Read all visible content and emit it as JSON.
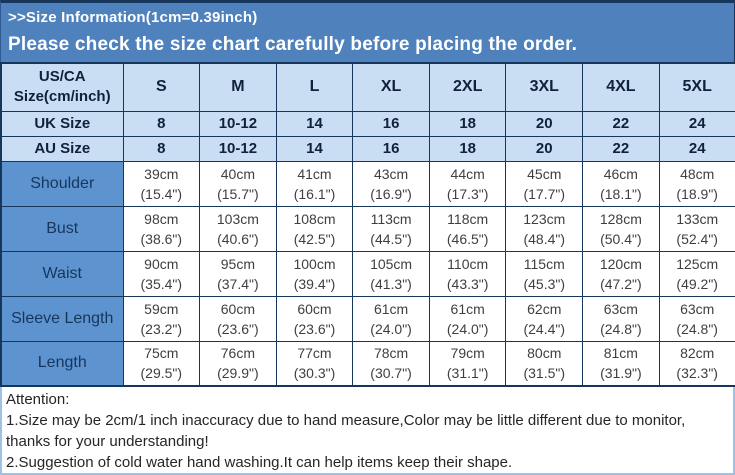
{
  "banner": {
    "title": ">>Size Information(1cm=0.39inch)",
    "subtitle": "Please check the size chart carefully before placing the order."
  },
  "table": {
    "corner": {
      "line1": "US/CA",
      "line2": "Size(cm/inch)"
    },
    "size_columns": [
      "S",
      "M",
      "L",
      "XL",
      "2XL",
      "3XL",
      "4XL",
      "5XL"
    ],
    "size_rows": [
      {
        "label": "UK Size",
        "values": [
          "8",
          "10-12",
          "14",
          "16",
          "18",
          "20",
          "22",
          "24"
        ]
      },
      {
        "label": "AU Size",
        "values": [
          "8",
          "10-12",
          "14",
          "16",
          "18",
          "20",
          "22",
          "24"
        ]
      }
    ],
    "measurement_rows": [
      {
        "label": "Shoulder",
        "cells": [
          {
            "cm": "39cm",
            "inch": "(15.4\")"
          },
          {
            "cm": "40cm",
            "inch": "(15.7\")"
          },
          {
            "cm": "41cm",
            "inch": "(16.1\")"
          },
          {
            "cm": "43cm",
            "inch": "(16.9\")"
          },
          {
            "cm": "44cm",
            "inch": "(17.3\")"
          },
          {
            "cm": "45cm",
            "inch": "(17.7\")"
          },
          {
            "cm": "46cm",
            "inch": "(18.1\")"
          },
          {
            "cm": "48cm",
            "inch": "(18.9\")"
          }
        ]
      },
      {
        "label": "Bust",
        "cells": [
          {
            "cm": "98cm",
            "inch": "(38.6\")"
          },
          {
            "cm": "103cm",
            "inch": "(40.6\")"
          },
          {
            "cm": "108cm",
            "inch": "(42.5\")"
          },
          {
            "cm": "113cm",
            "inch": "(44.5\")"
          },
          {
            "cm": "118cm",
            "inch": "(46.5\")"
          },
          {
            "cm": "123cm",
            "inch": "(48.4\")"
          },
          {
            "cm": "128cm",
            "inch": "(50.4\")"
          },
          {
            "cm": "133cm",
            "inch": "(52.4\")"
          }
        ]
      },
      {
        "label": "Waist",
        "cells": [
          {
            "cm": "90cm",
            "inch": "(35.4\")"
          },
          {
            "cm": "95cm",
            "inch": "(37.4\")"
          },
          {
            "cm": "100cm",
            "inch": "(39.4\")"
          },
          {
            "cm": "105cm",
            "inch": "(41.3\")"
          },
          {
            "cm": "110cm",
            "inch": "(43.3\")"
          },
          {
            "cm": "115cm",
            "inch": "(45.3\")"
          },
          {
            "cm": "120cm",
            "inch": "(47.2\")"
          },
          {
            "cm": "125cm",
            "inch": "(49.2\")"
          }
        ]
      },
      {
        "label": "Sleeve Length",
        "cells": [
          {
            "cm": "59cm",
            "inch": "(23.2\")"
          },
          {
            "cm": "60cm",
            "inch": "(23.6\")"
          },
          {
            "cm": "60cm",
            "inch": "(23.6\")"
          },
          {
            "cm": "61cm",
            "inch": "(24.0\")"
          },
          {
            "cm": "61cm",
            "inch": "(24.0\")"
          },
          {
            "cm": "62cm",
            "inch": "(24.4\")"
          },
          {
            "cm": "63cm",
            "inch": "(24.8\")"
          },
          {
            "cm": "63cm",
            "inch": "(24.8\")"
          }
        ]
      },
      {
        "label": "Length",
        "cells": [
          {
            "cm": "75cm",
            "inch": "(29.5\")"
          },
          {
            "cm": "76cm",
            "inch": "(29.9\")"
          },
          {
            "cm": "77cm",
            "inch": "(30.3\")"
          },
          {
            "cm": "78cm",
            "inch": "(30.7\")"
          },
          {
            "cm": "79cm",
            "inch": "(31.1\")"
          },
          {
            "cm": "80cm",
            "inch": "(31.5\")"
          },
          {
            "cm": "81cm",
            "inch": "(31.9\")"
          },
          {
            "cm": "82cm",
            "inch": "(32.3\")"
          }
        ]
      }
    ]
  },
  "attention": {
    "title": "Attention:",
    "lines": [
      "1.Size may be 2cm/1 inch inaccuracy due to hand measure,Color may be little different due to monitor, thanks for your understanding!",
      "2.Suggestion of cold water hand washing.It can help items keep their shape."
    ]
  },
  "colors": {
    "banner_bg": "#4f81bd",
    "header_bg": "#c9def2",
    "label_col_bg": "#5d93cf",
    "border_dark": "#16365c",
    "attention_border": "#9cc2e5"
  }
}
